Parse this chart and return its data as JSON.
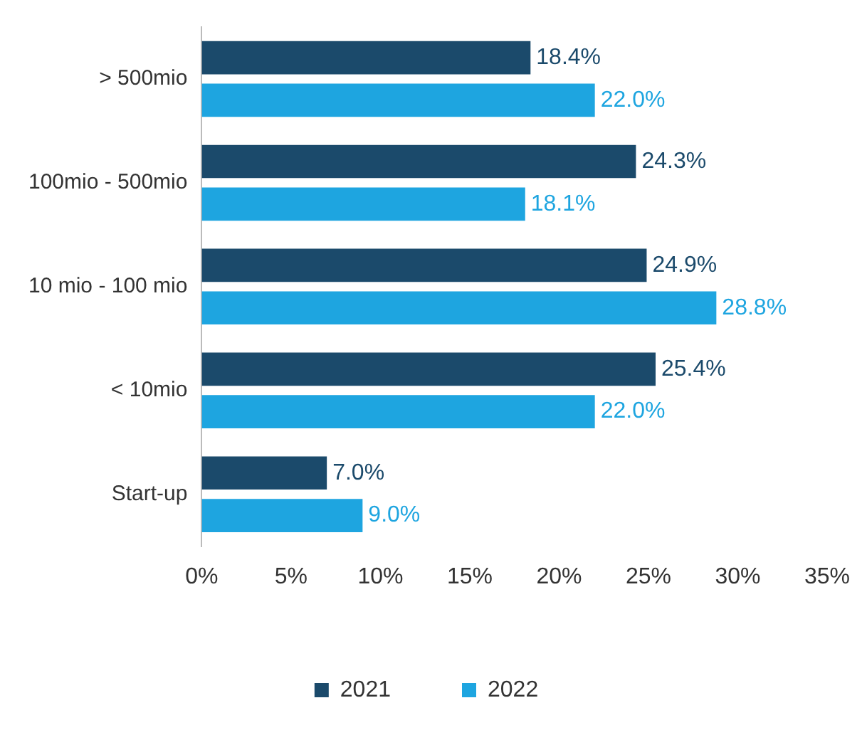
{
  "chart_data": {
    "type": "bar",
    "orientation": "horizontal",
    "categories": [
      "> 500mio",
      "100mio - 500mio",
      "10 mio - 100 mio",
      "< 10mio",
      "Start-up"
    ],
    "series": [
      {
        "name": "2021",
        "color": "#1b4a6b",
        "values": [
          18.4,
          24.3,
          24.9,
          25.4,
          7.0
        ],
        "value_labels": [
          "18.4%",
          "24.3%",
          "24.9%",
          "25.4%",
          "7.0%"
        ]
      },
      {
        "name": "2022",
        "color": "#1ea5e0",
        "values": [
          22.0,
          18.1,
          28.8,
          22.0,
          9.0
        ],
        "value_labels": [
          "22.0%",
          "18.1%",
          "28.8%",
          "22.0%",
          "9.0%"
        ]
      }
    ],
    "xlim": [
      0,
      35
    ],
    "xticks": [
      {
        "value": 0,
        "label": "0%"
      },
      {
        "value": 5,
        "label": "5%"
      },
      {
        "value": 10,
        "label": "10%"
      },
      {
        "value": 15,
        "label": "15%"
      },
      {
        "value": 20,
        "label": "20%"
      },
      {
        "value": 25,
        "label": "25%"
      },
      {
        "value": 30,
        "label": "30%"
      },
      {
        "value": 35,
        "label": "35%"
      }
    ],
    "grid": false,
    "legend": "bottom"
  }
}
